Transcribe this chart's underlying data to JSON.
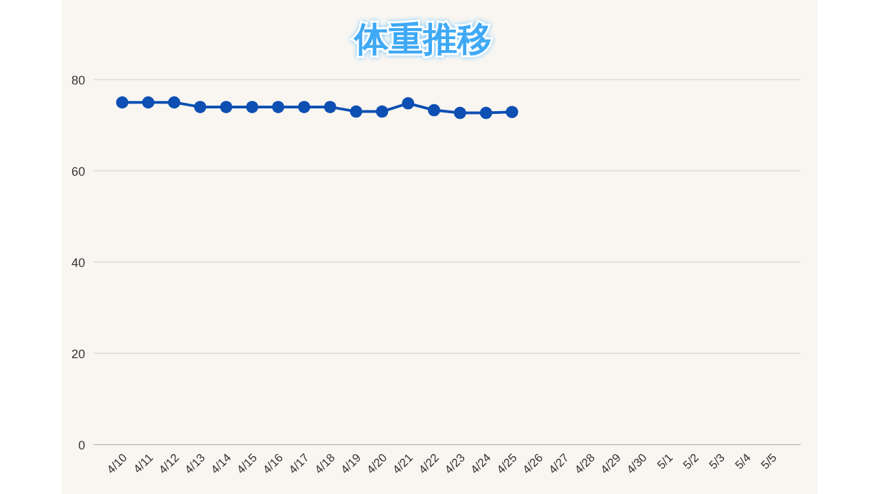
{
  "chart_data": {
    "type": "line",
    "title": "体重推移",
    "categories": [
      "4/10",
      "4/11",
      "4/12",
      "4/13",
      "4/14",
      "4/15",
      "4/16",
      "4/17",
      "4/18",
      "4/19",
      "4/20",
      "4/21",
      "4/22",
      "4/23",
      "4/24",
      "4/25",
      "4/26",
      "4/27",
      "4/28",
      "4/29",
      "4/30",
      "5/1",
      "5/2",
      "5/3",
      "5/4",
      "5/5"
    ],
    "series": [
      {
        "color": "#0d4fb3",
        "values": [
          75,
          75,
          75,
          74,
          74,
          74,
          74,
          74,
          74,
          73,
          73,
          74.8,
          73.3,
          72.7,
          72.7,
          72.9,
          null,
          null,
          null,
          null,
          null,
          null,
          null,
          null,
          null,
          null
        ]
      }
    ],
    "ylim": [
      0,
      80
    ],
    "yticks": [
      0,
      20,
      40,
      60,
      80
    ],
    "grid": "y",
    "marker": "circle",
    "line_style": "solid"
  }
}
